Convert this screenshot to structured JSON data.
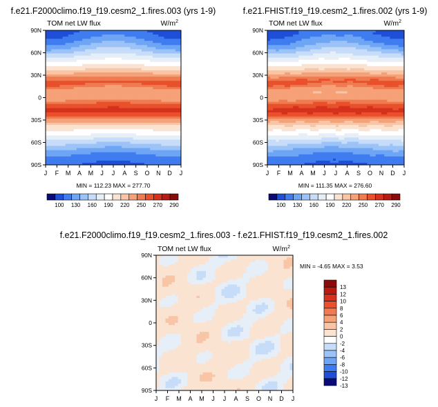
{
  "chart_data": [
    {
      "type": "heatmap",
      "title": "f.e21.F2000climo.f19_f19.cesm2_1.fires.003 (yrs 1-9)",
      "variable_label": "TOM net LW flux",
      "units_base": "W/m",
      "units_exp": "2",
      "x_tick_labels": [
        "J",
        "F",
        "M",
        "A",
        "M",
        "J",
        "J",
        "A",
        "S",
        "O",
        "N",
        "D",
        "J"
      ],
      "y_tick_labels": [
        "90N",
        "60N",
        "30N",
        "0",
        "30S",
        "60S",
        "90S"
      ],
      "y_tick_values": [
        90,
        60,
        30,
        0,
        -30,
        -60,
        -90
      ],
      "stats_text": "MIN = 112.23 MAX = 277.70",
      "min": 112.23,
      "max": 277.7,
      "colorbar_labels": [
        "100",
        "130",
        "160",
        "190",
        "220",
        "250",
        "270",
        "290"
      ],
      "colorbar_levels": [
        100,
        130,
        160,
        190,
        220,
        250,
        270,
        290
      ]
    },
    {
      "type": "heatmap",
      "title": "f.e21.FHIST.f19_f19.cesm2_1.fires.002 (yrs 1-9)",
      "variable_label": "TOM net LW flux",
      "units_base": "W/m",
      "units_exp": "2",
      "x_tick_labels": [
        "J",
        "F",
        "M",
        "A",
        "M",
        "J",
        "J",
        "A",
        "S",
        "O",
        "N",
        "D",
        "J"
      ],
      "y_tick_labels": [
        "90N",
        "60N",
        "30N",
        "0",
        "30S",
        "60S",
        "90S"
      ],
      "y_tick_values": [
        90,
        60,
        30,
        0,
        -30,
        -60,
        -90
      ],
      "stats_text": "MIN = 111.35 MAX = 276.60",
      "min": 111.35,
      "max": 276.6,
      "colorbar_labels": [
        "100",
        "130",
        "160",
        "190",
        "220",
        "250",
        "270",
        "290"
      ],
      "colorbar_levels": [
        100,
        130,
        160,
        190,
        220,
        250,
        270,
        290
      ]
    },
    {
      "type": "heatmap",
      "title": "f.e21.F2000climo.f19_f19.cesm2_1.fires.003 - f.e21.FHIST.f19_f19.cesm2_1.fires.002",
      "variable_label": "TOM net LW flux",
      "units_base": "W/m",
      "units_exp": "2",
      "x_tick_labels": [
        "J",
        "F",
        "M",
        "A",
        "M",
        "J",
        "J",
        "A",
        "S",
        "O",
        "N",
        "D",
        "J"
      ],
      "y_tick_labels": [
        "90N",
        "60N",
        "30N",
        "0",
        "30S",
        "60S",
        "90S"
      ],
      "y_tick_values": [
        90,
        60,
        30,
        0,
        -30,
        -60,
        -90
      ],
      "stats_text": "MIN = -4.65 MAX =  3.53",
      "min": -4.65,
      "max": 3.53,
      "colorbar_labels": [
        "13",
        "12",
        "10",
        "8",
        "6",
        "4",
        "2",
        "0",
        "-2",
        "-4",
        "-6",
        "-8",
        "-10",
        "-12",
        "-13"
      ],
      "colorbar_levels": [
        13,
        12,
        10,
        8,
        6,
        4,
        2,
        0,
        -2,
        -4,
        -6,
        -8,
        -10,
        -12,
        -13
      ]
    }
  ],
  "colors": {
    "abs_scale": [
      "#0b0b78",
      "#1f4fd8",
      "#3f7cf0",
      "#6ea5f5",
      "#9cc3f8",
      "#c6dcf8",
      "#e6eef8",
      "#ffffff",
      "#fbe3d2",
      "#f8c6a7",
      "#f6a178",
      "#f07b50",
      "#e8512c",
      "#d6311c",
      "#b81b12",
      "#8a0b0b"
    ],
    "diff_scale": [
      "#8a0b0b",
      "#b81b12",
      "#d6311c",
      "#e8512c",
      "#f07b50",
      "#f6a178",
      "#f8c6a7",
      "#fbe3d2",
      "#ffffff",
      "#c6dcf8",
      "#9cc3f8",
      "#6ea5f5",
      "#3f7cf0",
      "#1f4fd8",
      "#0b0b78"
    ]
  }
}
